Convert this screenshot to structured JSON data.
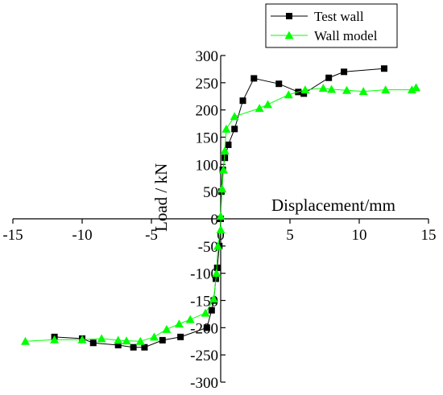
{
  "chart_data": {
    "type": "line",
    "xlabel": "Displacement/mm",
    "ylabel": "Load / kN",
    "xlim": [
      -15,
      15
    ],
    "ylim": [
      -300,
      300
    ],
    "x_ticks": [
      -15,
      -10,
      -5,
      0,
      5,
      10,
      15
    ],
    "y_ticks": [
      -300,
      -250,
      -200,
      -150,
      -100,
      -50,
      0,
      50,
      100,
      150,
      200,
      250,
      300
    ],
    "grid": false,
    "legend_position": "top-right",
    "series": [
      {
        "name": "Test wall",
        "color": "#000000",
        "marker": "square",
        "points": [
          [
            -12.0,
            -217
          ],
          [
            -10.0,
            -220
          ],
          [
            -9.2,
            -228
          ],
          [
            -7.4,
            -232
          ],
          [
            -6.3,
            -236
          ],
          [
            -5.5,
            -236
          ],
          [
            -4.2,
            -223
          ],
          [
            -2.9,
            -217
          ],
          [
            -1.0,
            -200
          ],
          [
            -0.65,
            -168
          ],
          [
            -0.5,
            -150
          ],
          [
            -0.35,
            -110
          ],
          [
            -0.25,
            -90
          ],
          [
            -0.1,
            -50
          ],
          [
            0.0,
            0
          ],
          [
            0.05,
            50
          ],
          [
            0.15,
            90
          ],
          [
            0.3,
            112
          ],
          [
            0.55,
            136
          ],
          [
            1.0,
            165
          ],
          [
            1.6,
            217
          ],
          [
            2.4,
            258
          ],
          [
            4.2,
            248
          ],
          [
            5.6,
            233
          ],
          [
            6.0,
            230
          ],
          [
            7.8,
            259
          ],
          [
            8.9,
            270
          ],
          [
            11.8,
            276
          ]
        ]
      },
      {
        "name": "Wall model",
        "color": "#00ff00",
        "marker": "triangle",
        "points": [
          [
            -14.1,
            -225
          ],
          [
            -12.0,
            -222
          ],
          [
            -10.0,
            -222
          ],
          [
            -8.6,
            -220
          ],
          [
            -7.4,
            -223
          ],
          [
            -6.8,
            -224
          ],
          [
            -5.8,
            -225
          ],
          [
            -4.8,
            -217
          ],
          [
            -3.9,
            -203
          ],
          [
            -3.0,
            -193
          ],
          [
            -2.2,
            -185
          ],
          [
            -1.1,
            -173
          ],
          [
            -0.5,
            -147
          ],
          [
            -0.3,
            -100
          ],
          [
            -0.2,
            -50
          ],
          [
            0.0,
            -20
          ],
          [
            0.0,
            5
          ],
          [
            0.1,
            55
          ],
          [
            0.2,
            90
          ],
          [
            0.3,
            125
          ],
          [
            0.4,
            165
          ],
          [
            1.0,
            188
          ],
          [
            2.8,
            203
          ],
          [
            3.4,
            210
          ],
          [
            4.9,
            228
          ],
          [
            6.1,
            237
          ],
          [
            7.4,
            240
          ],
          [
            8.0,
            238
          ],
          [
            9.1,
            236
          ],
          [
            10.3,
            234
          ],
          [
            11.9,
            237
          ],
          [
            13.8,
            237
          ],
          [
            14.1,
            241
          ]
        ]
      }
    ]
  }
}
